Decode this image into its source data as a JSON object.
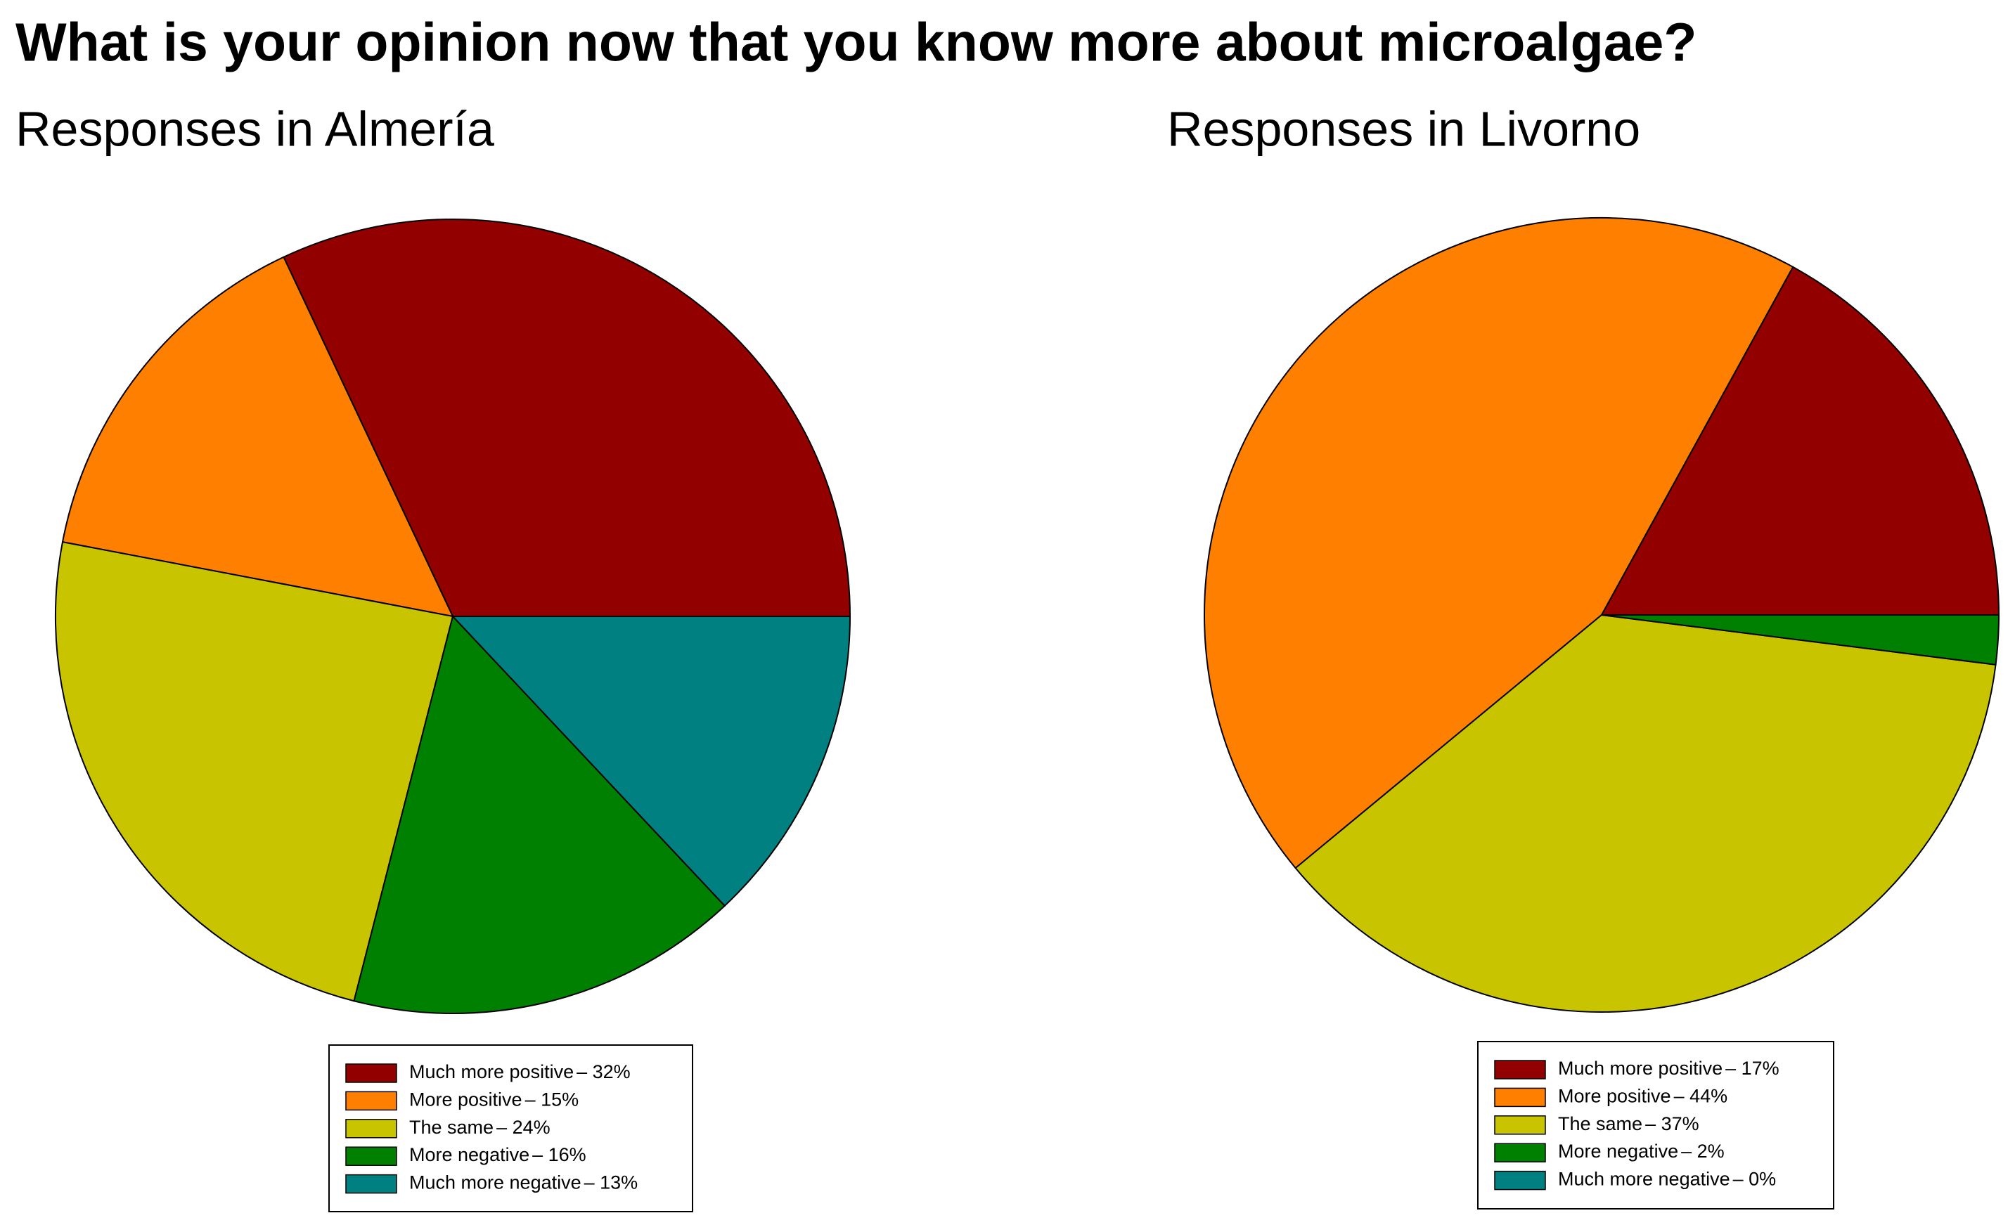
{
  "title": "What is your opinion now that you know more about microalgae?",
  "chart_data": [
    {
      "type": "pie",
      "title": "Responses in Almería",
      "categories": [
        "Much more positive",
        "More positive",
        "The same",
        "More negative",
        "Much more negative"
      ],
      "values": [
        32,
        15,
        24,
        16,
        13
      ],
      "value_labels": [
        "– 32%",
        "– 15%",
        "– 24%",
        "– 16%",
        "– 13%"
      ],
      "colors": [
        "#930000",
        "#ff8000",
        "#c8c400",
        "#008000",
        "#008080"
      ]
    },
    {
      "type": "pie",
      "title": "Responses in Livorno",
      "categories": [
        "Much more positive",
        "More positive",
        "The same",
        "More negative",
        "Much more negative"
      ],
      "values": [
        17,
        44,
        37,
        2,
        0
      ],
      "value_labels": [
        "– 17%",
        "– 44%",
        "– 37%",
        "– 2%",
        "– 0%"
      ],
      "colors": [
        "#930000",
        "#ff8000",
        "#c8c400",
        "#008000",
        "#008080"
      ]
    }
  ]
}
